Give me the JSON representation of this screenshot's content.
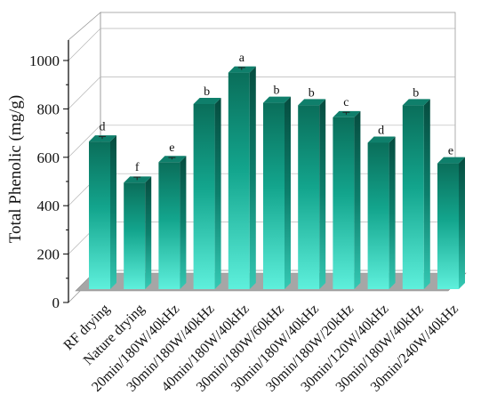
{
  "chart_data": {
    "type": "bar",
    "ylabel": "Total Phenolic (mg/g)",
    "xlabel": "",
    "ylim": [
      0,
      1000
    ],
    "yticks": [
      0,
      200,
      400,
      600,
      800,
      1000
    ],
    "grid": true,
    "style": "3d",
    "categories": [
      "RF drying",
      "Nature drying",
      "20min/180W/40kHz",
      "30min/180W/40kHz",
      "40min/180W/40kHz",
      "30min/180W/60kHz",
      "30min/180W/40kHz",
      "30min/180W/20kHz",
      "30min/120W/40kHz",
      "30min/180W/40kHz",
      "30min/240W/40kHz"
    ],
    "values": [
      665,
      495,
      580,
      820,
      950,
      825,
      815,
      765,
      660,
      815,
      575
    ],
    "errors": [
      10,
      12,
      8,
      0,
      10,
      0,
      0,
      10,
      0,
      0,
      0
    ],
    "labels": [
      "d",
      "f",
      "e",
      "b",
      "a",
      "b",
      "b",
      "c",
      "d",
      "b",
      "e"
    ],
    "colors": {
      "bar_top": "#0a6e5a",
      "bar_mid": "#13a58d",
      "bar_bottom": "#5ef0dc",
      "bar_top_face": "#0f7f6b",
      "bar_side": "#0c5f52",
      "floor": "#a6a6a6"
    }
  }
}
